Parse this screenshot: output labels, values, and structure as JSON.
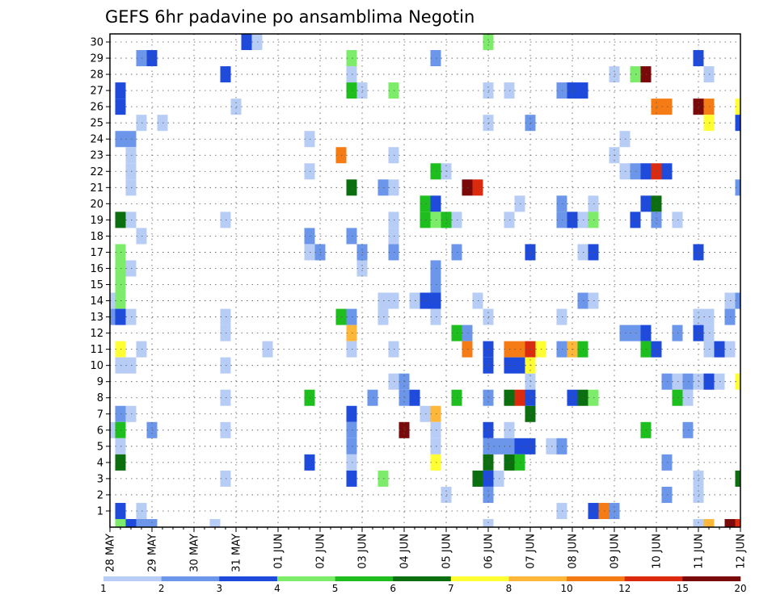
{
  "chart_data": {
    "type": "heatmap",
    "title": "GEFS 6hr padavine po ansamblima Negotin",
    "x_tick_labels": [
      "28 MAY",
      "29 MAY",
      "30 MAY",
      "31 MAY",
      "01 JUN",
      "02 JUN",
      "03 JUN",
      "04 JUN",
      "05 JUN",
      "06 JUN",
      "07 JUN",
      "08 JUN",
      "09 JUN",
      "10 JUN",
      "11 JUN",
      "12 JUN"
    ],
    "y_tick_labels": [
      "1",
      "2",
      "3",
      "4",
      "5",
      "6",
      "7",
      "8",
      "9",
      "10",
      "11",
      "12",
      "13",
      "14",
      "15",
      "16",
      "17",
      "18",
      "19",
      "20",
      "21",
      "22",
      "23",
      "24",
      "25",
      "26",
      "27",
      "28",
      "29",
      "30"
    ],
    "x_steps": 60,
    "y_members": 31,
    "grid": true,
    "colorbar": {
      "position": "bottom",
      "tick_labels": [
        "1",
        "2",
        "3",
        "4",
        "5",
        "6",
        "7",
        "8",
        "10",
        "12",
        "15",
        "20"
      ],
      "colors": [
        "#b8cdf5",
        "#6b96ea",
        "#1f4bdc",
        "#7cec6a",
        "#1fbe1f",
        "#0b6e0f",
        "#ffff33",
        "#ffb73a",
        "#f57b14",
        "#dc2a0f",
        "#7a0a0a"
      ]
    },
    "cells": [
      [
        30,
        13,
        3
      ],
      [
        30,
        14,
        1
      ],
      [
        30,
        36,
        4
      ],
      [
        29,
        3,
        2
      ],
      [
        29,
        4,
        3
      ],
      [
        29,
        23,
        4
      ],
      [
        29,
        31,
        2
      ],
      [
        29,
        56,
        3
      ],
      [
        28,
        11,
        3
      ],
      [
        28,
        23,
        1
      ],
      [
        28,
        48,
        1
      ],
      [
        28,
        50,
        4
      ],
      [
        28,
        51,
        11
      ],
      [
        28,
        57,
        1
      ],
      [
        27,
        1,
        3
      ],
      [
        27,
        23,
        5
      ],
      [
        27,
        24,
        1
      ],
      [
        27,
        27,
        4
      ],
      [
        27,
        36,
        1
      ],
      [
        27,
        38,
        1
      ],
      [
        27,
        43,
        2
      ],
      [
        27,
        44,
        3
      ],
      [
        27,
        45,
        3
      ],
      [
        26,
        1,
        3
      ],
      [
        26,
        12,
        1
      ],
      [
        26,
        52,
        9
      ],
      [
        26,
        53,
        9
      ],
      [
        26,
        56,
        11
      ],
      [
        26,
        57,
        9
      ],
      [
        26,
        60,
        7
      ],
      [
        25,
        3,
        1
      ],
      [
        25,
        5,
        1
      ],
      [
        25,
        36,
        1
      ],
      [
        25,
        40,
        2
      ],
      [
        25,
        57,
        7
      ],
      [
        25,
        60,
        3
      ],
      [
        24,
        1,
        2
      ],
      [
        24,
        2,
        2
      ],
      [
        24,
        19,
        1
      ],
      [
        24,
        49,
        1
      ],
      [
        23,
        2,
        1
      ],
      [
        23,
        22,
        9
      ],
      [
        23,
        27,
        1
      ],
      [
        23,
        48,
        1
      ],
      [
        22,
        2,
        1
      ],
      [
        22,
        19,
        1
      ],
      [
        22,
        31,
        5
      ],
      [
        22,
        32,
        1
      ],
      [
        22,
        49,
        1
      ],
      [
        22,
        50,
        2
      ],
      [
        22,
        51,
        3
      ],
      [
        22,
        52,
        10
      ],
      [
        22,
        53,
        3
      ],
      [
        21,
        2,
        1
      ],
      [
        21,
        23,
        6
      ],
      [
        21,
        26,
        2
      ],
      [
        21,
        27,
        1
      ],
      [
        21,
        34,
        11
      ],
      [
        21,
        35,
        10
      ],
      [
        21,
        60,
        2
      ],
      [
        20,
        30,
        5
      ],
      [
        20,
        31,
        3
      ],
      [
        20,
        39,
        1
      ],
      [
        20,
        43,
        2
      ],
      [
        20,
        46,
        1
      ],
      [
        20,
        51,
        3
      ],
      [
        20,
        52,
        6
      ],
      [
        19,
        1,
        6
      ],
      [
        19,
        2,
        1
      ],
      [
        19,
        11,
        1
      ],
      [
        19,
        27,
        1
      ],
      [
        19,
        30,
        5
      ],
      [
        19,
        31,
        4
      ],
      [
        19,
        32,
        5
      ],
      [
        19,
        33,
        1
      ],
      [
        19,
        38,
        1
      ],
      [
        19,
        43,
        2
      ],
      [
        19,
        44,
        3
      ],
      [
        19,
        45,
        1
      ],
      [
        19,
        46,
        4
      ],
      [
        19,
        50,
        3
      ],
      [
        19,
        52,
        2
      ],
      [
        19,
        54,
        1
      ],
      [
        18,
        3,
        1
      ],
      [
        18,
        19,
        2
      ],
      [
        18,
        23,
        2
      ],
      [
        18,
        27,
        1
      ],
      [
        17,
        -1,
        1
      ],
      [
        17,
        1,
        4
      ],
      [
        17,
        19,
        1
      ],
      [
        17,
        20,
        2
      ],
      [
        17,
        24,
        2
      ],
      [
        17,
        27,
        2
      ],
      [
        17,
        33,
        2
      ],
      [
        17,
        40,
        3
      ],
      [
        17,
        45,
        1
      ],
      [
        17,
        46,
        3
      ],
      [
        17,
        56,
        3
      ],
      [
        16,
        1,
        4
      ],
      [
        16,
        2,
        1
      ],
      [
        16,
        24,
        1
      ],
      [
        16,
        31,
        2
      ],
      [
        15,
        1,
        4
      ],
      [
        15,
        31,
        2
      ],
      [
        14,
        0,
        1
      ],
      [
        14,
        1,
        4
      ],
      [
        14,
        26,
        1
      ],
      [
        14,
        27,
        1
      ],
      [
        14,
        29,
        1
      ],
      [
        14,
        30,
        3
      ],
      [
        14,
        31,
        3
      ],
      [
        14,
        35,
        1
      ],
      [
        14,
        45,
        2
      ],
      [
        14,
        46,
        1
      ],
      [
        14,
        59,
        1
      ],
      [
        14,
        60,
        2
      ],
      [
        13,
        -1,
        2
      ],
      [
        13,
        0,
        2
      ],
      [
        13,
        1,
        3
      ],
      [
        13,
        2,
        1
      ],
      [
        13,
        11,
        1
      ],
      [
        13,
        22,
        5
      ],
      [
        13,
        23,
        2
      ],
      [
        13,
        26,
        1
      ],
      [
        13,
        31,
        1
      ],
      [
        13,
        36,
        1
      ],
      [
        13,
        43,
        1
      ],
      [
        13,
        56,
        1
      ],
      [
        13,
        57,
        1
      ],
      [
        13,
        59,
        2
      ],
      [
        12,
        11,
        1
      ],
      [
        12,
        23,
        8
      ],
      [
        12,
        33,
        5
      ],
      [
        12,
        34,
        2
      ],
      [
        12,
        49,
        2
      ],
      [
        12,
        50,
        2
      ],
      [
        12,
        51,
        3
      ],
      [
        12,
        54,
        2
      ],
      [
        12,
        56,
        3
      ],
      [
        12,
        57,
        1
      ],
      [
        11,
        1,
        7
      ],
      [
        11,
        3,
        1
      ],
      [
        11,
        15,
        1
      ],
      [
        11,
        23,
        1
      ],
      [
        11,
        27,
        1
      ],
      [
        11,
        34,
        9
      ],
      [
        11,
        36,
        3
      ],
      [
        11,
        38,
        9
      ],
      [
        11,
        39,
        9
      ],
      [
        11,
        40,
        10
      ],
      [
        11,
        41,
        7
      ],
      [
        11,
        43,
        2
      ],
      [
        11,
        44,
        8
      ],
      [
        11,
        45,
        5
      ],
      [
        11,
        51,
        5
      ],
      [
        11,
        52,
        3
      ],
      [
        11,
        57,
        1
      ],
      [
        11,
        58,
        3
      ],
      [
        11,
        59,
        1
      ],
      [
        10,
        1,
        1
      ],
      [
        10,
        2,
        1
      ],
      [
        10,
        11,
        1
      ],
      [
        10,
        36,
        3
      ],
      [
        10,
        38,
        3
      ],
      [
        10,
        39,
        3
      ],
      [
        10,
        40,
        7
      ],
      [
        9,
        27,
        1
      ],
      [
        9,
        28,
        2
      ],
      [
        9,
        40,
        1
      ],
      [
        9,
        53,
        2
      ],
      [
        9,
        54,
        1
      ],
      [
        9,
        55,
        2
      ],
      [
        9,
        56,
        1
      ],
      [
        9,
        57,
        3
      ],
      [
        9,
        58,
        1
      ],
      [
        9,
        60,
        7
      ],
      [
        8,
        11,
        1
      ],
      [
        8,
        19,
        5
      ],
      [
        8,
        25,
        2
      ],
      [
        8,
        28,
        2
      ],
      [
        8,
        29,
        3
      ],
      [
        8,
        33,
        5
      ],
      [
        8,
        36,
        2
      ],
      [
        8,
        38,
        6
      ],
      [
        8,
        39,
        10
      ],
      [
        8,
        40,
        3
      ],
      [
        8,
        44,
        3
      ],
      [
        8,
        45,
        6
      ],
      [
        8,
        46,
        4
      ],
      [
        8,
        54,
        5
      ],
      [
        8,
        55,
        1
      ],
      [
        7,
        1,
        2
      ],
      [
        7,
        2,
        1
      ],
      [
        7,
        23,
        3
      ],
      [
        7,
        30,
        1
      ],
      [
        7,
        31,
        8
      ],
      [
        7,
        40,
        6
      ],
      [
        6,
        0,
        1
      ],
      [
        6,
        1,
        5
      ],
      [
        6,
        4,
        2
      ],
      [
        6,
        11,
        1
      ],
      [
        6,
        23,
        2
      ],
      [
        6,
        28,
        11
      ],
      [
        6,
        31,
        1
      ],
      [
        6,
        36,
        3
      ],
      [
        6,
        38,
        1
      ],
      [
        6,
        51,
        5
      ],
      [
        6,
        55,
        2
      ],
      [
        5,
        1,
        1
      ],
      [
        5,
        23,
        2
      ],
      [
        5,
        31,
        1
      ],
      [
        5,
        36,
        2
      ],
      [
        5,
        37,
        2
      ],
      [
        5,
        38,
        2
      ],
      [
        5,
        39,
        3
      ],
      [
        5,
        40,
        3
      ],
      [
        5,
        42,
        1
      ],
      [
        5,
        43,
        2
      ],
      [
        4,
        1,
        6
      ],
      [
        4,
        19,
        3
      ],
      [
        4,
        23,
        1
      ],
      [
        4,
        31,
        7
      ],
      [
        4,
        36,
        6
      ],
      [
        4,
        38,
        6
      ],
      [
        4,
        39,
        5
      ],
      [
        4,
        53,
        2
      ],
      [
        3,
        11,
        1
      ],
      [
        3,
        23,
        3
      ],
      [
        3,
        26,
        4
      ],
      [
        3,
        35,
        6
      ],
      [
        3,
        36,
        3
      ],
      [
        3,
        37,
        1
      ],
      [
        3,
        56,
        1
      ],
      [
        3,
        60,
        6
      ],
      [
        2,
        32,
        1
      ],
      [
        2,
        36,
        2
      ],
      [
        2,
        53,
        2
      ],
      [
        2,
        56,
        1
      ],
      [
        1,
        1,
        3
      ],
      [
        1,
        3,
        1
      ],
      [
        1,
        43,
        1
      ],
      [
        1,
        46,
        3
      ],
      [
        1,
        47,
        9
      ],
      [
        1,
        48,
        2
      ],
      [
        0,
        1,
        4
      ],
      [
        0,
        2,
        3
      ],
      [
        0,
        3,
        2
      ],
      [
        0,
        4,
        2
      ],
      [
        0,
        10,
        1
      ],
      [
        0,
        36,
        1
      ],
      [
        0,
        56,
        1
      ],
      [
        0,
        57,
        8
      ],
      [
        0,
        59,
        11
      ],
      [
        0,
        60,
        10
      ]
    ]
  }
}
